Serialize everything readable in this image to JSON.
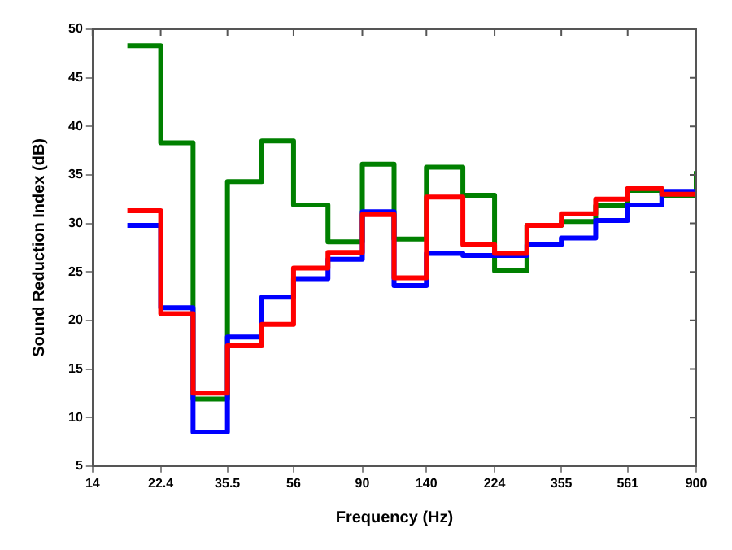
{
  "chart_data": {
    "type": "step",
    "xlabel": "Frequency (Hz)",
    "ylabel": "Sound Reduction Index (dB)",
    "x": [
      17.8,
      22.4,
      28,
      35.5,
      45,
      56,
      71,
      90,
      112,
      140,
      180,
      224,
      280,
      355,
      450,
      561,
      710,
      900
    ],
    "series": [
      {
        "color": "#ff0000",
        "values": [
          31.3,
          20.7,
          12.5,
          17.4,
          19.6,
          25.4,
          27.0,
          30.9,
          24.4,
          32.7,
          27.8,
          26.9,
          29.8,
          31.0,
          32.5,
          33.6,
          33.0,
          33.0
        ]
      },
      {
        "color": "#0000ff",
        "values": [
          29.8,
          21.3,
          8.5,
          18.3,
          22.4,
          24.3,
          26.3,
          31.2,
          23.6,
          26.9,
          26.7,
          26.7,
          27.8,
          28.5,
          30.3,
          31.9,
          33.3,
          33.3
        ]
      },
      {
        "color": "#008000",
        "values": [
          48.3,
          38.3,
          11.9,
          34.3,
          38.5,
          31.9,
          28.1,
          36.1,
          28.4,
          35.8,
          32.9,
          25.1,
          29.8,
          30.2,
          31.8,
          33.4,
          32.9,
          35.4
        ]
      }
    ],
    "log": "x",
    "xlim": [
      14,
      900
    ],
    "xticks": [
      14,
      22.4,
      35.5,
      56,
      90,
      140,
      224,
      355,
      561,
      900
    ],
    "ylim": [
      5,
      50
    ],
    "yticks": [
      5,
      10,
      15,
      20,
      25,
      30,
      35,
      40,
      45,
      50
    ],
    "grid": false,
    "legend": false
  }
}
